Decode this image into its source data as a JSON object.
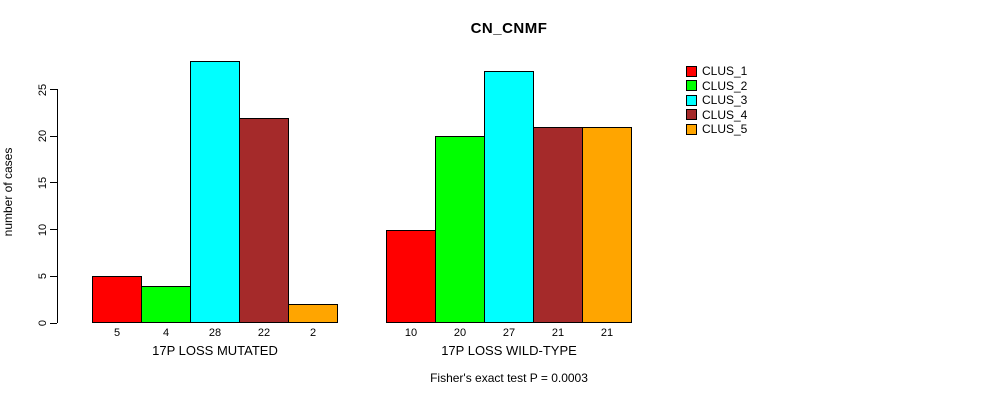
{
  "chart_data": {
    "type": "bar",
    "title": "CN_CNMF",
    "ylabel": "number of cases",
    "xlabel": "",
    "annotation": "Fisher's exact test P = 0.0003",
    "categories": [
      "17P LOSS MUTATED",
      "17P LOSS WILD-TYPE"
    ],
    "series": [
      {
        "name": "CLUS_1",
        "color": "#FF0000",
        "values": [
          5,
          10
        ]
      },
      {
        "name": "CLUS_2",
        "color": "#00FF00",
        "values": [
          4,
          20
        ]
      },
      {
        "name": "CLUS_3",
        "color": "#00FFFF",
        "values": [
          28,
          27
        ]
      },
      {
        "name": "CLUS_4",
        "color": "#A52A2A",
        "values": [
          22,
          21
        ]
      },
      {
        "name": "CLUS_5",
        "color": "#FFA500",
        "values": [
          2,
          21
        ]
      }
    ],
    "yticks": [
      0,
      5,
      10,
      15,
      20,
      25
    ],
    "ylim": [
      0,
      28
    ],
    "grid": false,
    "bar_value_labels_shown": true,
    "legend": {
      "position": "right",
      "entries": [
        "CLUS_1",
        "CLUS_2",
        "CLUS_3",
        "CLUS_4",
        "CLUS_5"
      ]
    },
    "axis_color": "#000000",
    "background_color": "#FFFFFF"
  }
}
